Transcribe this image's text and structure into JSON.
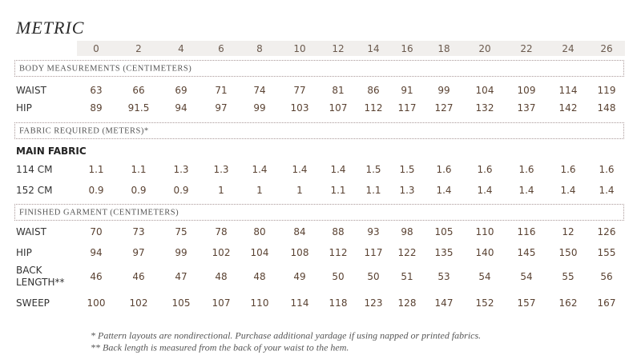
{
  "title": "METRIC",
  "sizes": [
    0,
    2,
    4,
    6,
    8,
    10,
    12,
    14,
    16,
    18,
    20,
    22,
    24,
    26
  ],
  "sections": [
    {
      "heading": "BODY MEASUREMENTS (CENTIMETERS)",
      "rows": [
        {
          "label": "WAIST",
          "values": [
            63,
            66,
            69,
            71,
            74,
            77,
            81,
            86,
            91,
            99,
            104,
            109,
            114,
            119
          ]
        },
        {
          "label": "HIP",
          "values": [
            89,
            91.5,
            94,
            97,
            99,
            103,
            107,
            112,
            117,
            127,
            132,
            137,
            142,
            148
          ]
        }
      ]
    },
    {
      "heading": "FABRIC REQUIRED (METERS)*",
      "subheading": "MAIN FABRIC",
      "rows": [
        {
          "label": "114 CM",
          "values": [
            1.1,
            1.1,
            1.3,
            1.3,
            1.4,
            1.4,
            1.4,
            1.5,
            1.5,
            1.6,
            1.6,
            1.6,
            1.6,
            1.6
          ]
        },
        {
          "label": "152 CM",
          "values": [
            0.9,
            0.9,
            0.9,
            1,
            1,
            1,
            1.1,
            1.1,
            1.3,
            1.4,
            1.4,
            1.4,
            1.4,
            1.4
          ]
        }
      ]
    },
    {
      "heading": "FINISHED GARMENT (CENTIMETERS)",
      "rows": [
        {
          "label": "WAIST",
          "values": [
            70,
            73,
            75,
            78,
            80,
            84,
            88,
            93,
            98,
            105,
            110,
            116,
            12,
            126
          ]
        },
        {
          "label": "HIP",
          "values": [
            94,
            97,
            99,
            102,
            104,
            108,
            112,
            117,
            122,
            135,
            140,
            145,
            150,
            155
          ]
        },
        {
          "label": "BACK LENGTH**",
          "values": [
            46,
            46,
            47,
            48,
            48,
            49,
            50,
            50,
            51,
            53,
            54,
            54,
            55,
            56
          ]
        },
        {
          "label": "SWEEP",
          "values": [
            100,
            102,
            105,
            107,
            110,
            114,
            118,
            123,
            128,
            147,
            152,
            157,
            162,
            167
          ]
        }
      ]
    }
  ],
  "footnotes": [
    "* Pattern layouts are nondirectional. Purchase additional yardage if using napped or printed fabrics.",
    "** Back length is measured from the back of your waist to the hem."
  ]
}
